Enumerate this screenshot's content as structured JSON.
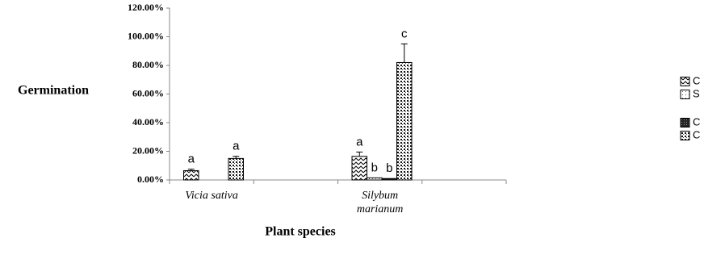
{
  "chart_data": {
    "type": "bar",
    "y_label": "Germination",
    "x_label": "Plant species",
    "categories": [
      "Vicia sativa",
      null,
      "Silybum marianum",
      null
    ],
    "series": [
      {
        "name": "C",
        "color": "#000000",
        "values": [
          6.5,
          null,
          16.5,
          null
        ],
        "errors": [
          1,
          null,
          3,
          null
        ],
        "letters": [
          "a",
          null,
          "a",
          null
        ]
      },
      {
        "name": "S",
        "color": "#000000",
        "values": [
          null,
          null,
          1.5,
          null
        ],
        "errors": [
          null,
          null,
          null,
          null
        ],
        "letters": [
          null,
          null,
          "b",
          null
        ]
      },
      {
        "name": "C",
        "color": "#000000",
        "values": [
          null,
          null,
          1,
          null
        ],
        "errors": [
          null,
          null,
          null,
          null
        ],
        "letters": [
          null,
          null,
          "b",
          null
        ]
      },
      {
        "name": "C",
        "color": "#000000",
        "values": [
          15,
          null,
          82,
          null
        ],
        "errors": [
          1.5,
          null,
          13,
          null
        ],
        "letters": [
          "a",
          null,
          "c",
          null
        ]
      }
    ],
    "ylim": [
      0,
      120
    ],
    "yticks": [
      {
        "value": 0,
        "label": "0.00%"
      },
      {
        "value": 20,
        "label": "20.00%"
      },
      {
        "value": 40,
        "label": "40.00%"
      },
      {
        "value": 60,
        "label": "60.00%"
      },
      {
        "value": 80,
        "label": "80.00%"
      },
      {
        "value": 100,
        "label": "100.00%"
      },
      {
        "value": 120,
        "label": "120.00%"
      }
    ],
    "grid": false
  }
}
